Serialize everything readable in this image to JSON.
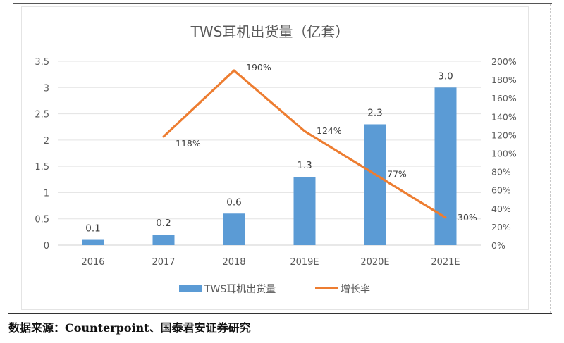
{
  "chart_data": {
    "type": "bar",
    "title": "TWS耳机出货量（亿套）",
    "categories": [
      "2016",
      "2017",
      "2018",
      "2019E",
      "2020E",
      "2021E"
    ],
    "series": [
      {
        "name": "TWS耳机出货量",
        "type": "bar",
        "axis": "left",
        "color": "#5b9bd5",
        "values": [
          0.1,
          0.2,
          0.6,
          1.3,
          2.3,
          3.0
        ],
        "labels": [
          "0.1",
          "0.2",
          "0.6",
          "1.3",
          "2.3",
          "3.0"
        ]
      },
      {
        "name": "增长率",
        "type": "line",
        "axis": "right",
        "color": "#ed7d31",
        "values": [
          null,
          118,
          190,
          124,
          77,
          30
        ],
        "labels": [
          "",
          "118%",
          "190%",
          "124%",
          "77%",
          "30%"
        ]
      }
    ],
    "y_left": {
      "min": 0,
      "max": 3.5,
      "ticks": [
        "0",
        "0.5",
        "1",
        "1.5",
        "2",
        "2.5",
        "3",
        "3.5"
      ]
    },
    "y_right": {
      "min": 0,
      "max": 200,
      "ticks": [
        "0%",
        "20%",
        "40%",
        "60%",
        "80%",
        "100%",
        "120%",
        "140%",
        "160%",
        "180%",
        "200%"
      ]
    },
    "xlabel": "",
    "ylabel": "",
    "grid": true,
    "legend": "bottom-center"
  },
  "source_note": "数据来源：Counterpoint、国泰君安证券研究"
}
